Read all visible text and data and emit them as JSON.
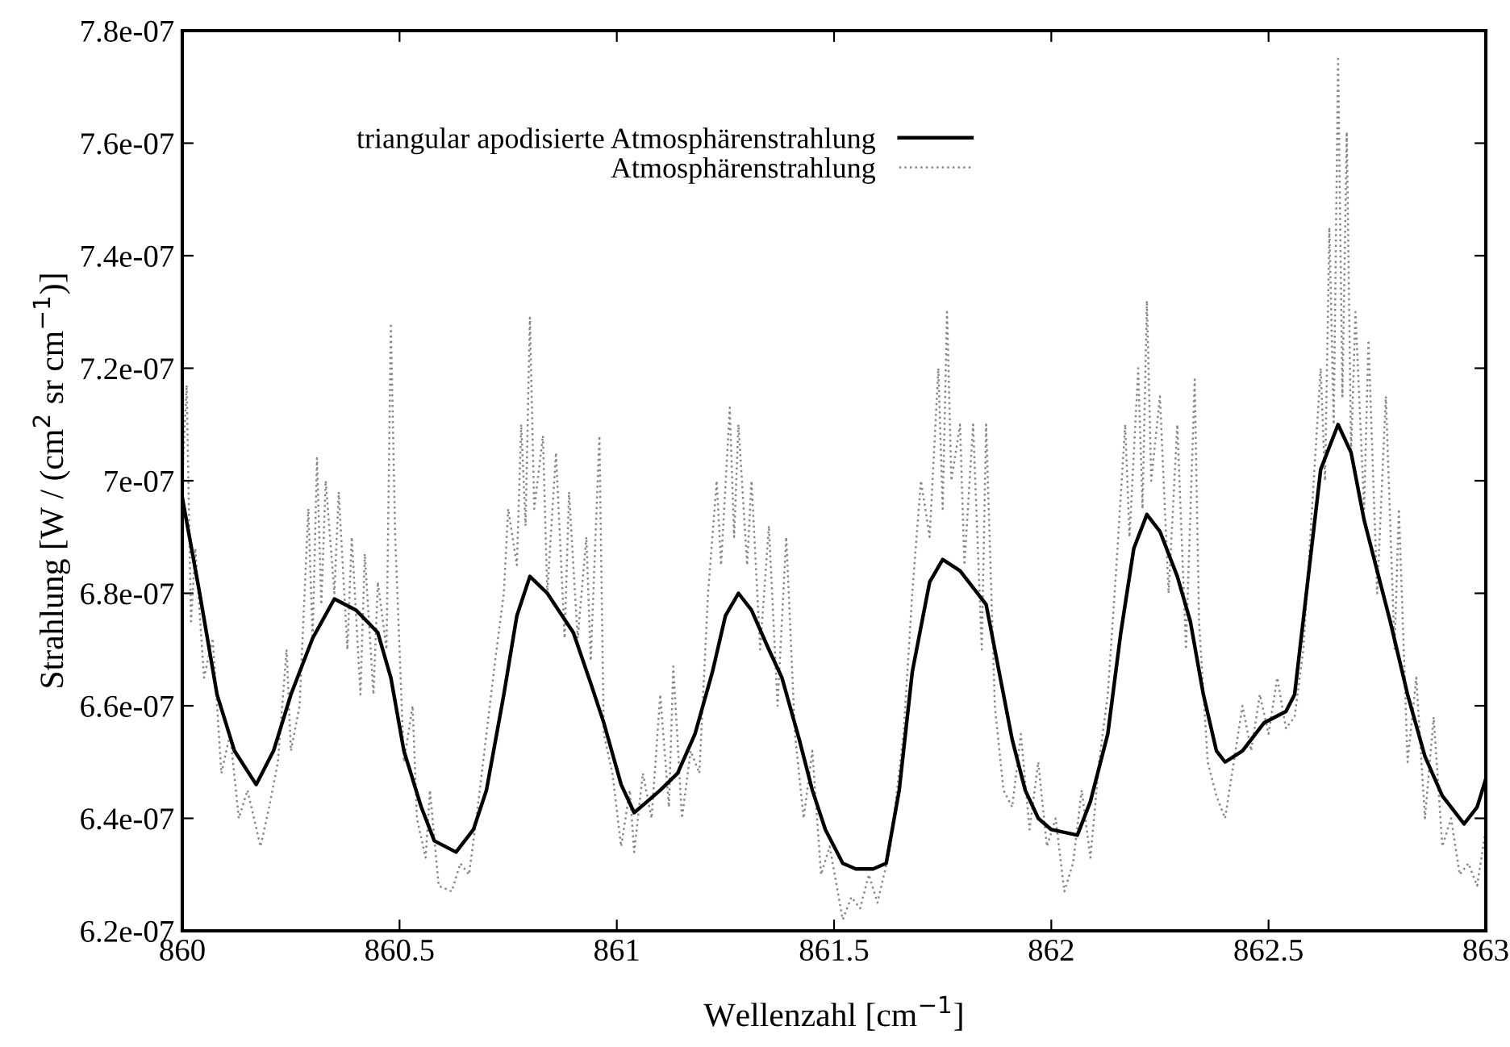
{
  "chart_data": {
    "type": "line",
    "xlabel": "Wellenzahl [cm$^{−1}$]",
    "ylabel": "Strahlung [W / (cm$^{2}$ sr cm$^{−1}$)]",
    "xlim": [
      860,
      863
    ],
    "xticks": [
      860,
      860.5,
      861,
      861.5,
      862,
      862.5,
      863
    ],
    "ylim": [
      6.2e-07,
      7.8e-07
    ],
    "yticks": [
      {
        "value": 6.2e-07,
        "label": "6.2e-07"
      },
      {
        "value": 6.4e-07,
        "label": "6.4e-07"
      },
      {
        "value": 6.6e-07,
        "label": "6.6e-07"
      },
      {
        "value": 6.8e-07,
        "label": "6.8e-07"
      },
      {
        "value": 7e-07,
        "label": "7e-07"
      },
      {
        "value": 7.2e-07,
        "label": "7.2e-07"
      },
      {
        "value": 7.4e-07,
        "label": "7.4e-07"
      },
      {
        "value": 7.6e-07,
        "label": "7.6e-07"
      },
      {
        "value": 7.8e-07,
        "label": "7.8e-07"
      }
    ],
    "grid": false,
    "legend": "top left",
    "series": [
      {
        "name": "triangular apodisierte Atmosphärenstrahlung",
        "color": "#000000",
        "line_style": "solid",
        "x": [
          860.0,
          860.04,
          860.08,
          860.12,
          860.17,
          860.21,
          860.25,
          860.3,
          860.35,
          860.4,
          860.45,
          860.48,
          860.51,
          860.55,
          860.58,
          860.63,
          860.67,
          860.7,
          860.74,
          860.77,
          860.8,
          860.84,
          860.9,
          860.94,
          860.97,
          861.01,
          861.04,
          861.07,
          861.1,
          861.14,
          861.18,
          861.22,
          861.25,
          861.28,
          861.31,
          861.35,
          861.38,
          861.42,
          861.45,
          861.48,
          861.52,
          861.55,
          861.59,
          861.62,
          861.65,
          861.68,
          861.72,
          861.75,
          861.79,
          861.85,
          861.88,
          861.91,
          861.94,
          861.97,
          862.0,
          862.06,
          862.09,
          862.13,
          862.16,
          862.19,
          862.22,
          862.25,
          862.29,
          862.32,
          862.35,
          862.38,
          862.4,
          862.44,
          862.49,
          862.54,
          862.56,
          862.59,
          862.62,
          862.66,
          862.69,
          862.72,
          862.75,
          862.78,
          862.82,
          862.86,
          862.9,
          862.95,
          862.98,
          863.0
        ],
        "values": [
          6.97e-07,
          6.8e-07,
          6.62e-07,
          6.52e-07,
          6.46e-07,
          6.52e-07,
          6.62e-07,
          6.72e-07,
          6.79e-07,
          6.77e-07,
          6.73e-07,
          6.65e-07,
          6.52e-07,
          6.42e-07,
          6.36e-07,
          6.34e-07,
          6.38e-07,
          6.45e-07,
          6.62e-07,
          6.76e-07,
          6.83e-07,
          6.8e-07,
          6.73e-07,
          6.64e-07,
          6.57e-07,
          6.46e-07,
          6.41e-07,
          6.43e-07,
          6.45e-07,
          6.48e-07,
          6.55e-07,
          6.66e-07,
          6.76e-07,
          6.8e-07,
          6.77e-07,
          6.7e-07,
          6.65e-07,
          6.54e-07,
          6.45e-07,
          6.38e-07,
          6.32e-07,
          6.31e-07,
          6.31e-07,
          6.32e-07,
          6.45e-07,
          6.66e-07,
          6.82e-07,
          6.86e-07,
          6.84e-07,
          6.78e-07,
          6.66e-07,
          6.54e-07,
          6.45e-07,
          6.4e-07,
          6.38e-07,
          6.37e-07,
          6.43e-07,
          6.55e-07,
          6.73e-07,
          6.88e-07,
          6.94e-07,
          6.91e-07,
          6.83e-07,
          6.75e-07,
          6.62e-07,
          6.52e-07,
          6.5e-07,
          6.52e-07,
          6.57e-07,
          6.59e-07,
          6.62e-07,
          6.82e-07,
          7.02e-07,
          7.1e-07,
          7.05e-07,
          6.93e-07,
          6.84e-07,
          6.75e-07,
          6.62e-07,
          6.51e-07,
          6.44e-07,
          6.39e-07,
          6.42e-07,
          6.47e-07
        ]
      },
      {
        "name": "Atmosphärenstrahlung",
        "color": "#888888",
        "line_style": "dotted",
        "x": [
          860.0,
          860.01,
          860.02,
          860.03,
          860.05,
          860.07,
          860.09,
          860.11,
          860.13,
          860.15,
          860.18,
          860.2,
          860.22,
          860.24,
          860.25,
          860.27,
          860.29,
          860.3,
          860.31,
          860.32,
          860.33,
          860.35,
          860.36,
          860.38,
          860.39,
          860.41,
          860.42,
          860.44,
          860.45,
          860.47,
          860.48,
          860.49,
          860.51,
          860.53,
          860.54,
          860.56,
          860.57,
          860.59,
          860.62,
          860.64,
          860.66,
          860.68,
          860.7,
          860.72,
          860.74,
          860.75,
          860.77,
          860.78,
          860.79,
          860.8,
          860.81,
          860.83,
          860.84,
          860.86,
          860.88,
          860.89,
          860.91,
          860.93,
          860.94,
          860.96,
          860.97,
          860.99,
          861.01,
          861.03,
          861.04,
          861.06,
          861.08,
          861.1,
          861.12,
          861.13,
          861.15,
          861.17,
          861.19,
          861.21,
          861.23,
          861.24,
          861.26,
          861.27,
          861.28,
          861.3,
          861.31,
          861.33,
          861.35,
          861.37,
          861.39,
          861.41,
          861.43,
          861.45,
          861.47,
          861.49,
          861.52,
          861.54,
          861.56,
          861.58,
          861.6,
          861.63,
          861.66,
          861.68,
          861.7,
          861.72,
          861.74,
          861.75,
          861.76,
          861.77,
          861.79,
          861.8,
          861.82,
          861.84,
          861.85,
          861.87,
          861.89,
          861.91,
          861.93,
          861.95,
          861.97,
          861.99,
          862.01,
          862.03,
          862.05,
          862.07,
          862.09,
          862.11,
          862.13,
          862.15,
          862.17,
          862.18,
          862.2,
          862.21,
          862.22,
          862.23,
          862.25,
          862.27,
          862.29,
          862.31,
          862.33,
          862.34,
          862.36,
          862.38,
          862.4,
          862.42,
          862.44,
          862.46,
          862.48,
          862.5,
          862.52,
          862.54,
          862.56,
          862.58,
          862.6,
          862.62,
          862.63,
          862.64,
          862.65,
          862.66,
          862.67,
          862.68,
          862.69,
          862.7,
          862.72,
          862.73,
          862.75,
          862.77,
          862.79,
          862.8,
          862.82,
          862.84,
          862.86,
          862.88,
          862.9,
          862.92,
          862.94,
          862.96,
          862.98,
          863.0
        ],
        "values": [
          7e-07,
          7.17e-07,
          6.75e-07,
          6.88e-07,
          6.65e-07,
          6.72e-07,
          6.48e-07,
          6.55e-07,
          6.4e-07,
          6.45e-07,
          6.35e-07,
          6.42e-07,
          6.5e-07,
          6.7e-07,
          6.52e-07,
          6.6e-07,
          6.95e-07,
          6.72e-07,
          7.04e-07,
          6.78e-07,
          7e-07,
          6.8e-07,
          6.98e-07,
          6.7e-07,
          6.9e-07,
          6.62e-07,
          6.87e-07,
          6.62e-07,
          6.82e-07,
          6.7e-07,
          7.28e-07,
          6.9e-07,
          6.5e-07,
          6.6e-07,
          6.4e-07,
          6.33e-07,
          6.45e-07,
          6.28e-07,
          6.27e-07,
          6.32e-07,
          6.3e-07,
          6.42e-07,
          6.55e-07,
          6.68e-07,
          6.8e-07,
          6.95e-07,
          6.85e-07,
          7.1e-07,
          6.92e-07,
          7.29e-07,
          6.95e-07,
          7.08e-07,
          6.8e-07,
          7.05e-07,
          6.72e-07,
          6.98e-07,
          6.72e-07,
          6.9e-07,
          6.68e-07,
          7.08e-07,
          6.55e-07,
          6.48e-07,
          6.35e-07,
          6.45e-07,
          6.34e-07,
          6.48e-07,
          6.4e-07,
          6.62e-07,
          6.42e-07,
          6.67e-07,
          6.4e-07,
          6.52e-07,
          6.48e-07,
          6.8e-07,
          7e-07,
          6.85e-07,
          7.13e-07,
          6.9e-07,
          7.1e-07,
          6.85e-07,
          7e-07,
          6.7e-07,
          6.92e-07,
          6.6e-07,
          6.9e-07,
          6.55e-07,
          6.4e-07,
          6.52e-07,
          6.3e-07,
          6.35e-07,
          6.22e-07,
          6.26e-07,
          6.24e-07,
          6.3e-07,
          6.25e-07,
          6.35e-07,
          6.55e-07,
          6.8e-07,
          7e-07,
          6.9e-07,
          7.2e-07,
          6.95e-07,
          7.3e-07,
          7e-07,
          7.1e-07,
          6.85e-07,
          7.1e-07,
          6.7e-07,
          7.1e-07,
          6.6e-07,
          6.45e-07,
          6.42e-07,
          6.55e-07,
          6.38e-07,
          6.5e-07,
          6.35e-07,
          6.4e-07,
          6.27e-07,
          6.32e-07,
          6.45e-07,
          6.33e-07,
          6.5e-07,
          6.62e-07,
          6.85e-07,
          7.1e-07,
          6.9e-07,
          7.2e-07,
          6.95e-07,
          7.32e-07,
          7e-07,
          7.15e-07,
          6.8e-07,
          7.1e-07,
          6.7e-07,
          7.18e-07,
          6.75e-07,
          6.5e-07,
          6.44e-07,
          6.4e-07,
          6.5e-07,
          6.6e-07,
          6.52e-07,
          6.62e-07,
          6.55e-07,
          6.65e-07,
          6.56e-07,
          6.58e-07,
          6.7e-07,
          6.95e-07,
          7.2e-07,
          7e-07,
          7.45e-07,
          7.1e-07,
          7.75e-07,
          7.15e-07,
          7.62e-07,
          7.05e-07,
          7.3e-07,
          6.95e-07,
          7.25e-07,
          6.8e-07,
          7.15e-07,
          6.7e-07,
          6.95e-07,
          6.5e-07,
          6.65e-07,
          6.4e-07,
          6.58e-07,
          6.35e-07,
          6.4e-07,
          6.3e-07,
          6.32e-07,
          6.28e-07,
          6.38e-07
        ]
      }
    ]
  }
}
